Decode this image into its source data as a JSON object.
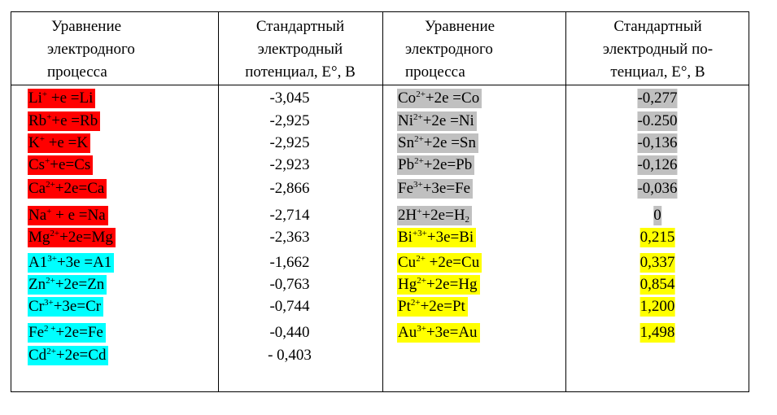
{
  "headers": {
    "col1": [
      "Уравнение",
      "электродного",
      "процесса"
    ],
    "col2": [
      "Стандартный",
      "электродный",
      "потенциал, Е°, В"
    ],
    "col3": [
      "Уравнение",
      "электродного",
      "процесса"
    ],
    "col4": [
      "Стандартный",
      "электродный по-",
      "тенциал, Е°, В"
    ]
  },
  "highlight_colors": {
    "red": "#ff0000",
    "cyan": "#00ffff",
    "gray": "#c0c0c0",
    "yellow": "#ffff00"
  },
  "left_rows": [
    {
      "el": "Li",
      "sup": "+",
      "rest": " +e =Li",
      "value": "-3,045",
      "color": "red"
    },
    {
      "el": "Rb",
      "sup": "+",
      "rest": "+e =Rb",
      "value": "-2,925",
      "color": "red"
    },
    {
      "el": "K",
      "sup": "+",
      "rest": "  +e =K",
      "value": "-2,925",
      "color": "red"
    },
    {
      "el": "Cs",
      "sup": "+",
      "rest": "+e=Cs",
      "value": "-2,923",
      "color": "red"
    },
    {
      "el": "Ca",
      "sup": "2+",
      "rest": "+2e=Ca",
      "value": "-2,866",
      "color": "red"
    },
    {
      "el": "Na",
      "sup": "+",
      "rest": " + e =Na",
      "value": "-2,714",
      "color": "red"
    },
    {
      "el": "Mg",
      "sup": "2+",
      "rest": "+2e=Mg",
      "value": "-2,363",
      "color": "red"
    },
    {
      "el": "A1",
      "sup": "3+",
      "rest": "+3e =A1",
      "value": "-1,662",
      "color": "cyan"
    },
    {
      "el": "Zn",
      "sup": "2+",
      "rest": "+2e=Zn",
      "value": "-0,763",
      "color": "cyan"
    },
    {
      "el": "Cr",
      "sup": "3+",
      "rest": "+3e=Cr",
      "value": "-0,744",
      "color": "cyan"
    },
    {
      "el": "Fe",
      "sup": "2 +",
      "rest": "+2e=Fe",
      "value": "-0,440",
      "color": "cyan"
    },
    {
      "el": "Cd",
      "sup": "2+",
      "rest": "+2e=Cd",
      "value": "- 0,403",
      "color": "cyan"
    }
  ],
  "right_rows": [
    {
      "el": "Co",
      "sup": "2+",
      "rest": "+2e =Co",
      "value": "-0,277",
      "color": "gray"
    },
    {
      "el": " Ni",
      "sup": "2+",
      "rest": "+2e =Ni",
      "value": "-0.250",
      "color": "gray"
    },
    {
      "el": "Sn",
      "sup": "2+",
      "rest": "+2e =Sn",
      "value": "-0,136",
      "color": "gray"
    },
    {
      "el": "Pb",
      "sup": "2+",
      "rest": "+2e=Pb",
      "value": "-0,126",
      "color": "gray"
    },
    {
      "el": "Fe",
      "sup": "3+",
      "rest": "+3e=Fe",
      "value": "-0,036",
      "color": "gray"
    },
    {
      "el": "2H",
      "sup": "+",
      "rest": "+2e=H",
      "sub": "2",
      "value": "0",
      "color": "gray"
    },
    {
      "el": "Bi",
      "sup": "+3+",
      "rest": "+3e=Bi",
      "value": "0,215",
      "color": "yellow"
    },
    {
      "el": "Cu",
      "sup": "2+",
      "rest": "  +2e=Cu",
      "value": "0,337",
      "color": "yellow"
    },
    {
      "el": "Hg",
      "sup": "2+",
      "rest": "+2e=Hg",
      "value": "0,854",
      "color": "yellow"
    },
    {
      "el": "Pt",
      "sup": "2+",
      "rest": "+2e=Pt",
      "value": "1,200",
      "color": "yellow"
    },
    {
      "el": "Au",
      "sup": "3+",
      "rest": "+3e=Au",
      "value": "1,498",
      "color": "yellow"
    }
  ]
}
